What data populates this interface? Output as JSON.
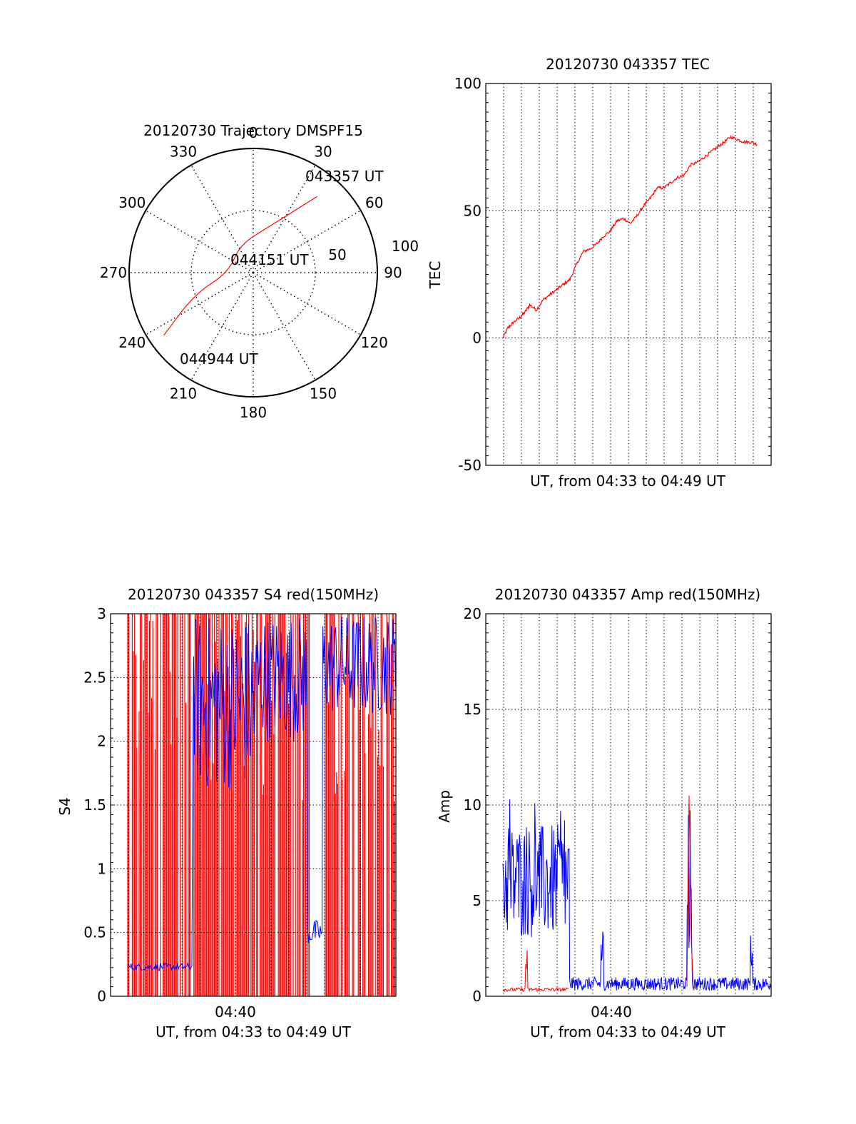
{
  "chart_data": [
    {
      "type": "polar-trajectory",
      "title": "20120730 Trajectory DMSPF15",
      "azimuth_labels": [
        "0",
        "30",
        "60",
        "90",
        "120",
        "150",
        "180",
        "210",
        "240",
        "270",
        "300",
        "330"
      ],
      "radial_labels": [
        "50",
        "100"
      ],
      "radial_range": [
        0,
        100
      ],
      "trajectory": {
        "color": "#ff0000",
        "points": [
          {
            "az": 40,
            "r": 80
          },
          {
            "az": 20,
            "r": 40
          },
          {
            "az": 335,
            "r": 25
          },
          {
            "az": 270,
            "r": 20
          },
          {
            "az": 250,
            "r": 50
          },
          {
            "az": 235,
            "r": 88
          }
        ],
        "labels": [
          "043357 UT",
          "044151 UT",
          "044944 UT"
        ]
      }
    },
    {
      "type": "line",
      "title": "20120730 043357 TEC",
      "ylabel": "TEC",
      "xlabel": "UT, from 04:33 to 04:49 UT",
      "ylim": [
        -50,
        100
      ],
      "yticks": [
        "100",
        "50",
        "0",
        "-50"
      ],
      "grid": true,
      "series": [
        {
          "color": "#ff0000",
          "x": [
            0.0,
            0.3,
            0.6,
            1.0,
            1.3,
            1.6,
            2.0,
            2.4,
            2.8,
            3.2,
            3.6,
            4.0,
            4.4,
            4.8,
            5.2,
            5.6,
            6.0,
            6.4,
            6.8,
            7.2,
            7.6,
            8.0,
            8.4,
            8.8,
            9.2,
            9.6,
            10.0,
            10.4,
            10.8,
            11.2,
            11.6,
            12.0,
            12.4,
            12.8,
            13.2,
            13.6,
            14.0,
            14.4,
            14.8,
            15.2
          ],
          "values": [
            0,
            4,
            6,
            8,
            10,
            13,
            11,
            15,
            17,
            19,
            21,
            23,
            29,
            34,
            35,
            37,
            40,
            42,
            46,
            47,
            45,
            48,
            52,
            55,
            59,
            59,
            61,
            63,
            64,
            68,
            69,
            71,
            73,
            75,
            77,
            79,
            78,
            77,
            77,
            76
          ]
        }
      ]
    },
    {
      "type": "line",
      "title": "20120730 043357 S4 red(150MHz)",
      "ylabel": "S4",
      "xlabel": "UT, from 04:33 to 04:49 UT",
      "xtick": "04:40",
      "ylim": [
        0,
        3
      ],
      "yticks": [
        "3",
        "2.5",
        "2",
        "1.5",
        "1",
        "0.5",
        "0"
      ],
      "grid": true,
      "series": [
        {
          "color": "#ff0000",
          "style": "dense-spikes"
        },
        {
          "color": "#0000ff",
          "style": "dense-noise",
          "baseline": 0.23
        }
      ]
    },
    {
      "type": "line",
      "title": "20120730 043357 Amp red(150MHz)",
      "ylabel": "Amp",
      "xlabel": "UT, from 04:33 to 04:49 UT",
      "xtick": "04:40",
      "ylim": [
        0,
        20
      ],
      "yticks": [
        "20",
        "15",
        "10",
        "5",
        "0"
      ],
      "grid": true,
      "series": [
        {
          "color": "#ff0000",
          "style": "low-noise",
          "baseline": 0.3
        },
        {
          "color": "#0000ff",
          "style": "noise",
          "segments": [
            {
              "from": 0.0,
              "to": 0.25,
              "center": 6,
              "spread": 4
            },
            {
              "from": 0.25,
              "to": 1.0,
              "center": 0.6,
              "spread": 0.5
            }
          ]
        }
      ]
    }
  ]
}
